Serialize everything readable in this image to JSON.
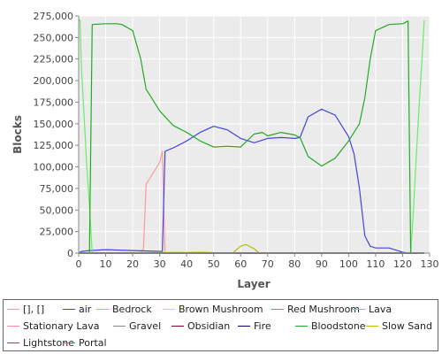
{
  "chart_data": {
    "type": "line",
    "title": "",
    "xlabel": "Layer",
    "ylabel": "Blocks",
    "xlim": [
      0,
      130
    ],
    "ylim": [
      0,
      275000
    ],
    "xticks": [
      0,
      10,
      20,
      30,
      40,
      50,
      60,
      70,
      80,
      90,
      100,
      110,
      120,
      130
    ],
    "xtick_labels": [
      "0",
      "10",
      "20",
      "30",
      "40",
      "50",
      "60",
      "70",
      "80",
      "90",
      "100",
      "110",
      "120",
      "130"
    ],
    "yticks": [
      0,
      25000,
      50000,
      75000,
      100000,
      125000,
      150000,
      175000,
      200000,
      225000,
      250000,
      275000
    ],
    "ytick_labels": [
      "0",
      "25,000",
      "50,000",
      "75,000",
      "100,000",
      "125,000",
      "150,000",
      "175,000",
      "200,000",
      "225,000",
      "250,000",
      "275,000"
    ],
    "grid": true,
    "legend_position": "bottom",
    "series": [
      {
        "name": "[], []",
        "color": "#ff9a9a",
        "points": [
          [
            0,
            0
          ],
          [
            23,
            0
          ],
          [
            24,
            5000
          ],
          [
            25,
            80000
          ],
          [
            26,
            85000
          ],
          [
            28,
            95000
          ],
          [
            30,
            105000
          ],
          [
            31,
            118000
          ],
          [
            32,
            0
          ],
          [
            128,
            0
          ]
        ]
      },
      {
        "name": "air",
        "color": "#4444dd",
        "points": [
          [
            0,
            0
          ],
          [
            1,
            2000
          ],
          [
            4,
            3000
          ],
          [
            10,
            4000
          ],
          [
            20,
            3000
          ],
          [
            31,
            2000
          ],
          [
            32,
            118000
          ],
          [
            35,
            122000
          ],
          [
            40,
            130000
          ],
          [
            45,
            140000
          ],
          [
            50,
            147000
          ],
          [
            55,
            143000
          ],
          [
            60,
            133000
          ],
          [
            65,
            128000
          ],
          [
            70,
            133000
          ],
          [
            75,
            134000
          ],
          [
            80,
            133000
          ],
          [
            82,
            134000
          ],
          [
            85,
            158000
          ],
          [
            90,
            167000
          ],
          [
            95,
            160000
          ],
          [
            100,
            135000
          ],
          [
            102,
            115000
          ],
          [
            104,
            75000
          ],
          [
            106,
            20000
          ],
          [
            108,
            8000
          ],
          [
            110,
            6000
          ],
          [
            115,
            6000
          ],
          [
            118,
            3000
          ],
          [
            120,
            1000
          ],
          [
            122,
            0
          ],
          [
            128,
            0
          ]
        ]
      },
      {
        "name": "Bedrock",
        "color": "#66ee66",
        "points": [
          [
            0,
            270000
          ],
          [
            0.5,
            270000
          ],
          [
            1,
            215000
          ],
          [
            2,
            160000
          ],
          [
            3,
            100000
          ],
          [
            4,
            55000
          ],
          [
            5,
            0
          ],
          [
            123,
            0
          ],
          [
            124,
            50000
          ],
          [
            125,
            108000
          ],
          [
            126,
            165000
          ],
          [
            127,
            215000
          ],
          [
            128,
            270000
          ]
        ]
      },
      {
        "name": "Brown Mushroom",
        "color": "#dddd44",
        "points": [
          [
            0,
            0
          ],
          [
            40,
            1000
          ],
          [
            45,
            1500
          ],
          [
            50,
            500
          ],
          [
            55,
            0
          ],
          [
            128,
            0
          ]
        ]
      },
      {
        "name": "Red Mushroom",
        "color": "#ee44ee",
        "points": [
          [
            0,
            0
          ],
          [
            128,
            0
          ]
        ]
      },
      {
        "name": "Lava",
        "color": "#44dddd",
        "points": [
          [
            0,
            0
          ],
          [
            128,
            0
          ]
        ]
      },
      {
        "name": "Stationary Lava",
        "color": "#ff88aa",
        "points": [
          [
            0,
            0
          ],
          [
            128,
            0
          ]
        ]
      },
      {
        "name": "Gravel",
        "color": "#888888",
        "points": [
          [
            0,
            0
          ],
          [
            128,
            0
          ]
        ]
      },
      {
        "name": "Obsidian",
        "color": "#770022",
        "points": [
          [
            0,
            0
          ],
          [
            128,
            0
          ]
        ]
      },
      {
        "name": "Fire",
        "color": "#000066",
        "points": [
          [
            0,
            0
          ],
          [
            128,
            0
          ]
        ]
      },
      {
        "name": "Bloodstone",
        "color": "#22aa22",
        "points": [
          [
            0,
            0
          ],
          [
            4,
            0
          ],
          [
            5,
            265000
          ],
          [
            10,
            266000
          ],
          [
            14,
            266000
          ],
          [
            16,
            265000
          ],
          [
            20,
            258000
          ],
          [
            23,
            225000
          ],
          [
            25,
            190000
          ],
          [
            30,
            165000
          ],
          [
            35,
            148000
          ],
          [
            40,
            140000
          ],
          [
            45,
            130000
          ],
          [
            50,
            123000
          ],
          [
            55,
            124000
          ],
          [
            60,
            123000
          ],
          [
            65,
            138000
          ],
          [
            68,
            140000
          ],
          [
            70,
            136000
          ],
          [
            75,
            140000
          ],
          [
            80,
            137000
          ],
          [
            82,
            134000
          ],
          [
            85,
            112000
          ],
          [
            90,
            101000
          ],
          [
            95,
            110000
          ],
          [
            100,
            130000
          ],
          [
            104,
            150000
          ],
          [
            106,
            180000
          ],
          [
            108,
            225000
          ],
          [
            110,
            258000
          ],
          [
            115,
            265000
          ],
          [
            120,
            266000
          ],
          [
            122,
            269000
          ],
          [
            123,
            0
          ],
          [
            128,
            0
          ]
        ]
      },
      {
        "name": "Slow Sand",
        "color": "#bbbb00",
        "points": [
          [
            0,
            0
          ],
          [
            57,
            0
          ],
          [
            60,
            8000
          ],
          [
            62,
            10000
          ],
          [
            65,
            5000
          ],
          [
            67,
            0
          ],
          [
            128,
            0
          ]
        ]
      },
      {
        "name": "Lightstone",
        "color": "#993399",
        "points": [
          [
            0,
            0
          ],
          [
            128,
            0
          ]
        ]
      },
      {
        "name": "Portal",
        "color": "#22aa88",
        "points": [
          [
            0,
            0
          ],
          [
            128,
            0
          ]
        ]
      }
    ]
  }
}
